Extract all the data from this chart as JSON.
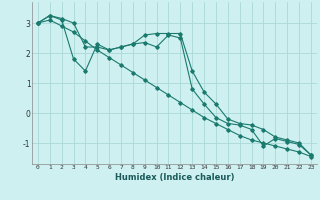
{
  "xlabel": "Humidex (Indice chaleur)",
  "ylabel": "",
  "bg_color": "#cff0f0",
  "grid_color": "#aad8d8",
  "line_color": "#1a7a6e",
  "line1_x": [
    0,
    1,
    2,
    3,
    4,
    5,
    6,
    7,
    8,
    9,
    10,
    11,
    12,
    13,
    14,
    15,
    16,
    17,
    18,
    19,
    20,
    21,
    22,
    23
  ],
  "line1_y": [
    3.0,
    3.25,
    3.15,
    3.0,
    2.2,
    2.2,
    2.1,
    2.2,
    2.3,
    2.6,
    2.65,
    2.65,
    2.65,
    1.4,
    0.7,
    0.3,
    -0.2,
    -0.35,
    -0.4,
    -0.55,
    -0.8,
    -0.9,
    -1.0,
    -1.4
  ],
  "line2_x": [
    0,
    1,
    2,
    3,
    4,
    5,
    6,
    7,
    8,
    9,
    10,
    11,
    12,
    13,
    14,
    15,
    16,
    17,
    18,
    19,
    20,
    21,
    22,
    23
  ],
  "line2_y": [
    3.0,
    3.25,
    3.1,
    1.8,
    1.4,
    2.3,
    2.1,
    2.2,
    2.3,
    2.35,
    2.2,
    2.6,
    2.5,
    0.8,
    0.3,
    -0.15,
    -0.35,
    -0.4,
    -0.55,
    -1.1,
    -0.85,
    -0.95,
    -1.05,
    -1.4
  ],
  "line3_x": [
    0,
    1,
    2,
    3,
    4,
    5,
    6,
    7,
    8,
    9,
    10,
    11,
    12,
    13,
    14,
    15,
    16,
    17,
    18,
    19,
    20,
    21,
    22,
    23
  ],
  "line3_y": [
    3.0,
    3.1,
    2.9,
    2.7,
    2.4,
    2.1,
    1.85,
    1.6,
    1.35,
    1.1,
    0.85,
    0.6,
    0.35,
    0.1,
    -0.15,
    -0.35,
    -0.55,
    -0.75,
    -0.9,
    -1.0,
    -1.1,
    -1.2,
    -1.3,
    -1.45
  ],
  "xlim": [
    -0.5,
    23.5
  ],
  "ylim": [
    -1.7,
    3.7
  ],
  "yticks": [
    -1,
    0,
    1,
    2,
    3
  ],
  "xticks": [
    0,
    1,
    2,
    3,
    4,
    5,
    6,
    7,
    8,
    9,
    10,
    11,
    12,
    13,
    14,
    15,
    16,
    17,
    18,
    19,
    20,
    21,
    22,
    23
  ],
  "xtick_labels": [
    "0",
    "1",
    "2",
    "3",
    "4",
    "5",
    "6",
    "7",
    "8",
    "9",
    "10",
    "11",
    "12",
    "13",
    "14",
    "15",
    "16",
    "17",
    "18",
    "19",
    "20",
    "21",
    "22",
    "23"
  ]
}
